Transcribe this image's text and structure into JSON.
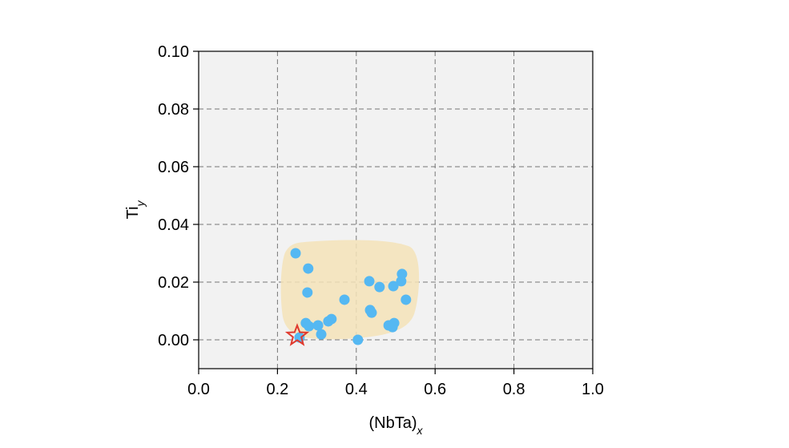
{
  "chart_data": {
    "type": "scatter",
    "xlabel": {
      "main": "(NbTa)",
      "sub": "x"
    },
    "ylabel": {
      "main": "Ti",
      "sub": "y"
    },
    "xlim": [
      0,
      1
    ],
    "ylim": [
      -0.01,
      0.1
    ],
    "xticks": [
      {
        "value": 0,
        "label": "0.0"
      },
      0.2,
      0.4,
      0.6,
      0.8,
      {
        "value": 1,
        "label": "1.0"
      }
    ],
    "yticks": [
      {
        "value": 0,
        "label": "0.00"
      },
      {
        "value": 0.02,
        "label": "0.02"
      },
      {
        "value": 0.04,
        "label": "0.04"
      },
      {
        "value": 0.06,
        "label": "0.06"
      },
      {
        "value": 0.08,
        "label": "0.08"
      },
      {
        "value": 0.1,
        "label": "0.10"
      }
    ],
    "grid": true,
    "series": [
      {
        "color": "#55b8f2",
        "marker": "circle",
        "x": [
          0.246,
          0.278,
          0.276,
          0.272,
          0.28,
          0.303,
          0.311,
          0.329,
          0.337,
          0.37,
          0.404,
          0.433,
          0.459,
          0.435,
          0.439,
          0.482,
          0.492,
          0.496,
          0.494,
          0.516,
          0.514,
          0.526,
          0.256
        ],
        "values": [
          0.03,
          0.0247,
          0.0164,
          0.0058,
          0.0047,
          0.005,
          0.0019,
          0.0064,
          0.0072,
          0.0139,
          0.0,
          0.0203,
          0.0183,
          0.0103,
          0.0094,
          0.005,
          0.0044,
          0.0058,
          0.0186,
          0.0228,
          0.0203,
          0.0139,
          0.0008
        ]
      },
      {
        "color": "#e03a2e",
        "marker": "star",
        "x": [
          0.25
        ],
        "values": [
          0.0014
        ]
      }
    ]
  }
}
